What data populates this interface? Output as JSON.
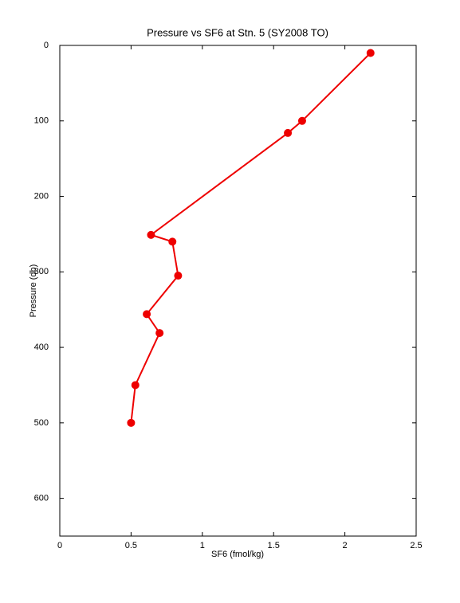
{
  "chart_data": {
    "type": "line",
    "title": "Pressure vs SF6 at Stn. 5 (SY2008 TO)",
    "xlabel": "SF6 (fmol/kg)",
    "ylabel": "Pressure (db)",
    "x": [
      2.18,
      1.7,
      1.6,
      0.64,
      0.79,
      0.83,
      0.61,
      0.7,
      0.53,
      0.5
    ],
    "y": [
      10,
      100,
      116,
      251,
      260,
      305,
      356,
      381,
      450,
      500
    ],
    "color": "#ee0000",
    "xlim": [
      0,
      2.5
    ],
    "xticks": [
      0,
      0.5,
      1,
      1.5,
      2,
      2.5
    ],
    "ylim": [
      0,
      650
    ],
    "yticks": [
      0,
      100,
      200,
      300,
      400,
      500,
      600
    ],
    "y_reversed": true,
    "grid": false
  }
}
